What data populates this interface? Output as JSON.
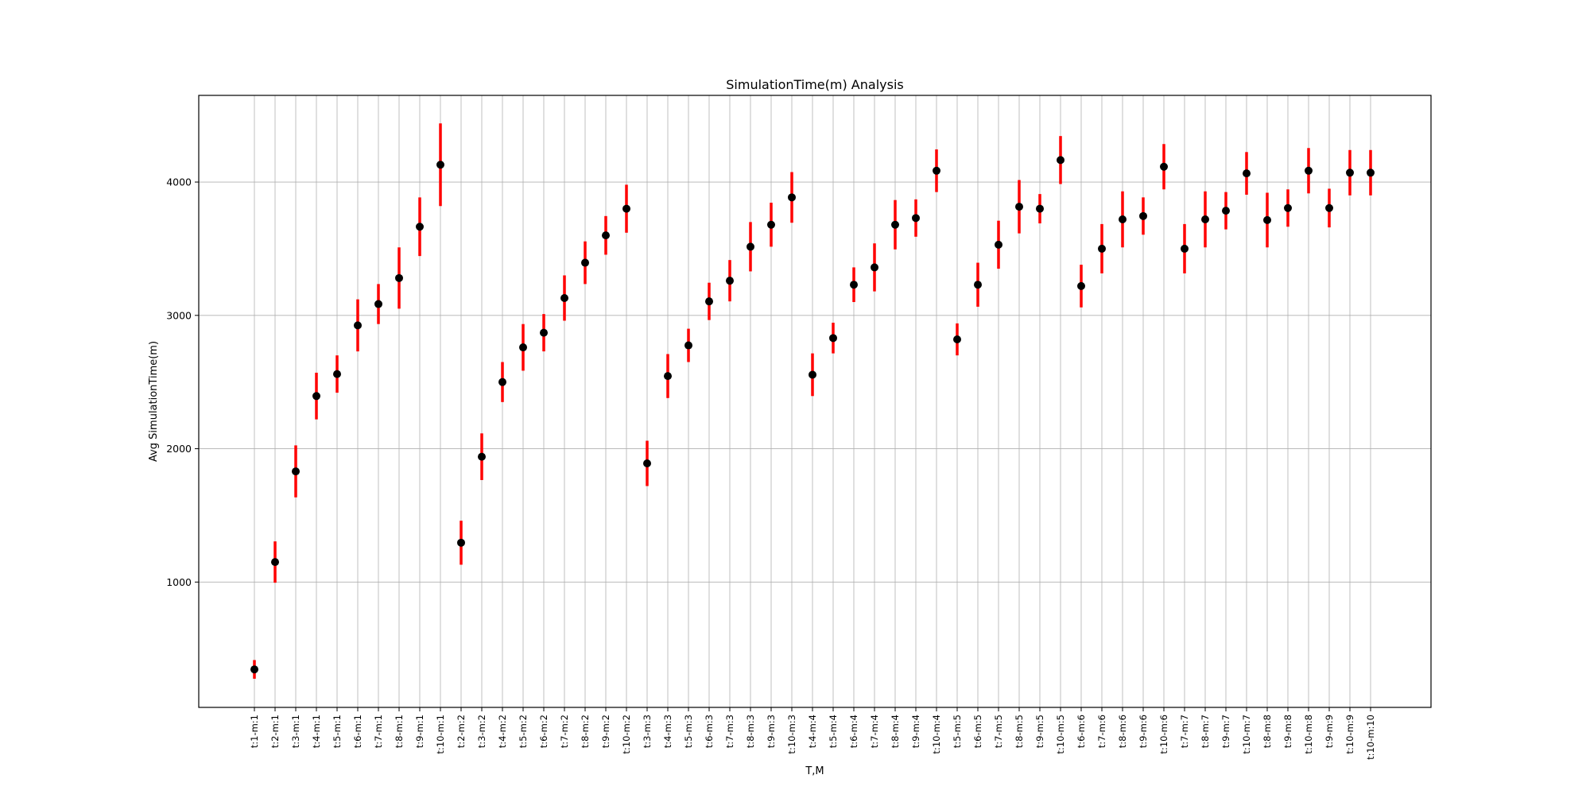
{
  "chart_data": {
    "type": "errorbar",
    "title": "SimulationTime(m) Analysis",
    "xlabel": "T,M",
    "ylabel": "Avg SimulationTime(m)",
    "ylim": [
      60,
      4650
    ],
    "yticks": [
      1000,
      2000,
      3000,
      4000
    ],
    "grid": true,
    "categories": [
      "t:1-m:1",
      "t:2-m:1",
      "t:3-m:1",
      "t:4-m:1",
      "t:5-m:1",
      "t:6-m:1",
      "t:7-m:1",
      "t:8-m:1",
      "t:9-m:1",
      "t:10-m:1",
      "t:2-m:2",
      "t:3-m:2",
      "t:4-m:2",
      "t:5-m:2",
      "t:6-m:2",
      "t:7-m:2",
      "t:8-m:2",
      "t:9-m:2",
      "t:10-m:2",
      "t:3-m:3",
      "t:4-m:3",
      "t:5-m:3",
      "t:6-m:3",
      "t:7-m:3",
      "t:8-m:3",
      "t:9-m:3",
      "t:10-m:3",
      "t:4-m:4",
      "t:5-m:4",
      "t:6-m:4",
      "t:7-m:4",
      "t:8-m:4",
      "t:9-m:4",
      "t:10-m:4",
      "t:5-m:5",
      "t:6-m:5",
      "t:7-m:5",
      "t:8-m:5",
      "t:9-m:5",
      "t:10-m:5",
      "t:6-m:6",
      "t:7-m:6",
      "t:8-m:6",
      "t:9-m:6",
      "t:10-m:6",
      "t:7-m:7",
      "t:8-m:7",
      "t:9-m:7",
      "t:10-m:7",
      "t:8-m:8",
      "t:9-m:8",
      "t:10-m:8",
      "t:9-m:9",
      "t:10-m:9",
      "t:10-m:10"
    ],
    "values": [
      345,
      1150,
      1830,
      2395,
      2560,
      2925,
      3085,
      3280,
      3665,
      4130,
      1295,
      1940,
      2500,
      2760,
      2870,
      3130,
      3395,
      3600,
      3800,
      1890,
      2545,
      2775,
      3105,
      3260,
      3515,
      3680,
      3885,
      2555,
      2830,
      3230,
      3360,
      3680,
      3730,
      4085,
      2820,
      3230,
      3530,
      3815,
      3800,
      4165,
      3220,
      3500,
      3720,
      3745,
      4115,
      3500,
      3720,
      3785,
      4065,
      3715,
      3805,
      4085,
      3805,
      4070,
      4070
    ],
    "errors": [
      70,
      155,
      195,
      175,
      140,
      195,
      150,
      230,
      220,
      310,
      165,
      175,
      150,
      175,
      140,
      170,
      160,
      145,
      180,
      170,
      165,
      125,
      140,
      155,
      185,
      165,
      190,
      160,
      115,
      130,
      180,
      185,
      140,
      160,
      120,
      165,
      180,
      200,
      110,
      180,
      160,
      185,
      210,
      140,
      170,
      185,
      210,
      140,
      160,
      205,
      140,
      170,
      145,
      170,
      170
    ],
    "series_color": "#000000",
    "errorbar_color": "#ff0000"
  }
}
